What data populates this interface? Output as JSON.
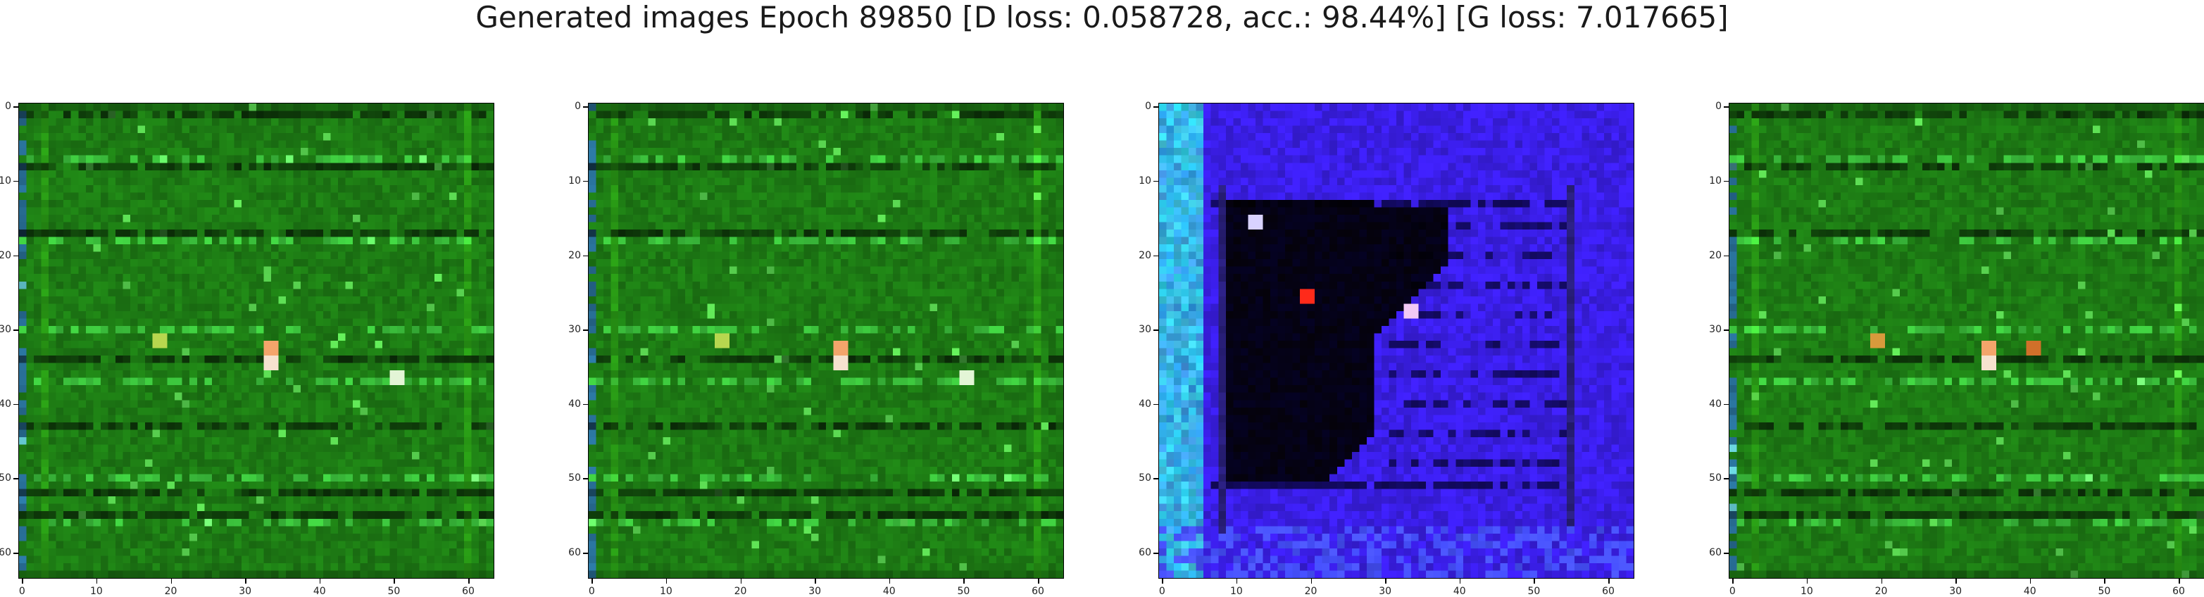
{
  "figure": {
    "title": "Generated images Epoch 89850 [D loss: 0.058728, acc.: 98.44%] [G loss: 7.017665]"
  },
  "axes": {
    "ticks": [
      0,
      10,
      20,
      30,
      40,
      50,
      60
    ],
    "tick_labels": [
      "0",
      "10",
      "20",
      "30",
      "40",
      "50",
      "60"
    ],
    "image_size": 64
  },
  "panels": [
    {
      "kind": "green-grid",
      "base_color": "#1d7a14",
      "highlights": [
        {
          "x": 33,
          "y": 32,
          "color": "#f3a56b"
        },
        {
          "x": 33,
          "y": 34,
          "color": "#f6e2cf"
        },
        {
          "x": 50,
          "y": 36,
          "color": "#e3f5d6"
        },
        {
          "x": 18,
          "y": 31,
          "color": "#b7d74f"
        }
      ]
    },
    {
      "kind": "green-grid",
      "base_color": "#1d7a14",
      "highlights": [
        {
          "x": 33,
          "y": 32,
          "color": "#f3a56b"
        },
        {
          "x": 33,
          "y": 34,
          "color": "#f6e2cf"
        },
        {
          "x": 50,
          "y": 36,
          "color": "#e3f5d6"
        },
        {
          "x": 17,
          "y": 31,
          "color": "#b7d74f"
        }
      ]
    },
    {
      "kind": "blue-dark",
      "base_color": "#3a1ee6",
      "highlights": [
        {
          "x": 19,
          "y": 25,
          "color": "#ff2a1a"
        },
        {
          "x": 33,
          "y": 27,
          "color": "#f2c9f5"
        },
        {
          "x": 12,
          "y": 15,
          "color": "#d9d2ff"
        }
      ]
    },
    {
      "kind": "green-grid",
      "base_color": "#1d7a14",
      "highlights": [
        {
          "x": 34,
          "y": 32,
          "color": "#f3a56b"
        },
        {
          "x": 34,
          "y": 34,
          "color": "#f6e2cf"
        },
        {
          "x": 40,
          "y": 32,
          "color": "#d1702a"
        },
        {
          "x": 19,
          "y": 31,
          "color": "#d89a3c"
        }
      ]
    }
  ]
}
